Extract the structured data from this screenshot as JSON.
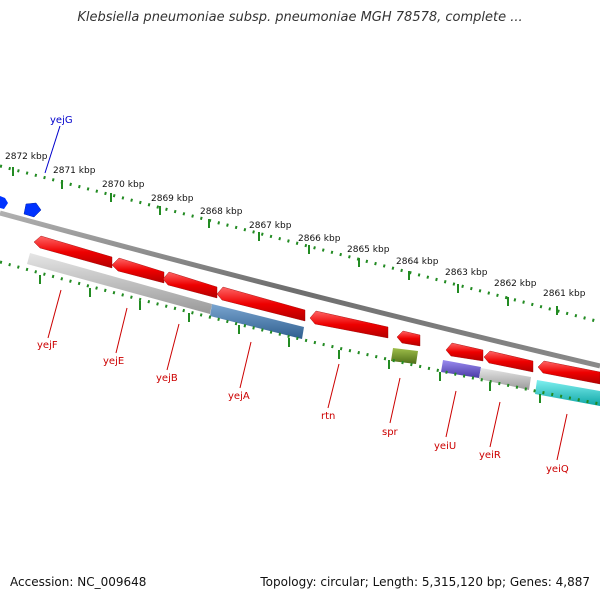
{
  "header": {
    "title": "Klebsiella pneumoniae subsp. pneumoniae MGH 78578, complete ..."
  },
  "scale": {
    "kbp_labels": [
      "2872 kbp",
      "2871 kbp",
      "2870 kbp",
      "2869 kbp",
      "2868 kbp",
      "2867 kbp",
      "2866 kbp",
      "2865 kbp",
      "2864 kbp",
      "2863 kbp",
      "2862 kbp",
      "2861 kbp"
    ]
  },
  "genes": [
    {
      "name": "yejG",
      "strand": "+",
      "color": "#0000cc"
    },
    {
      "name": "yejF",
      "strand": "-",
      "color": "#cc0000"
    },
    {
      "name": "yejE",
      "strand": "-",
      "color": "#cc0000"
    },
    {
      "name": "yejB",
      "strand": "-",
      "color": "#cc0000"
    },
    {
      "name": "yejA",
      "strand": "-",
      "color": "#cc0000"
    },
    {
      "name": "rtn",
      "strand": "-",
      "color": "#cc0000"
    },
    {
      "name": "spr",
      "strand": "-",
      "color": "#cc0000"
    },
    {
      "name": "yeiU",
      "strand": "-",
      "color": "#cc0000"
    },
    {
      "name": "yeiR",
      "strand": "-",
      "color": "#cc0000"
    },
    {
      "name": "yeiQ",
      "strand": "-",
      "color": "#cc0000"
    }
  ],
  "footer": {
    "accession": "Accession: NC_009648",
    "summary": "Topology: circular; Length: 5,315,120 bp; Genes: 4,887"
  },
  "colors": {
    "gene_red": "#ff1a1a",
    "gray_feature": "#bbbbbb",
    "blue_feature": "#4a7aaa",
    "olive_feature": "#6b8e23",
    "purple_feature": "#6a5acd",
    "cyan_feature": "#1ec8c8",
    "forward_gene": "#0033ff",
    "ticks": "#228b22"
  }
}
